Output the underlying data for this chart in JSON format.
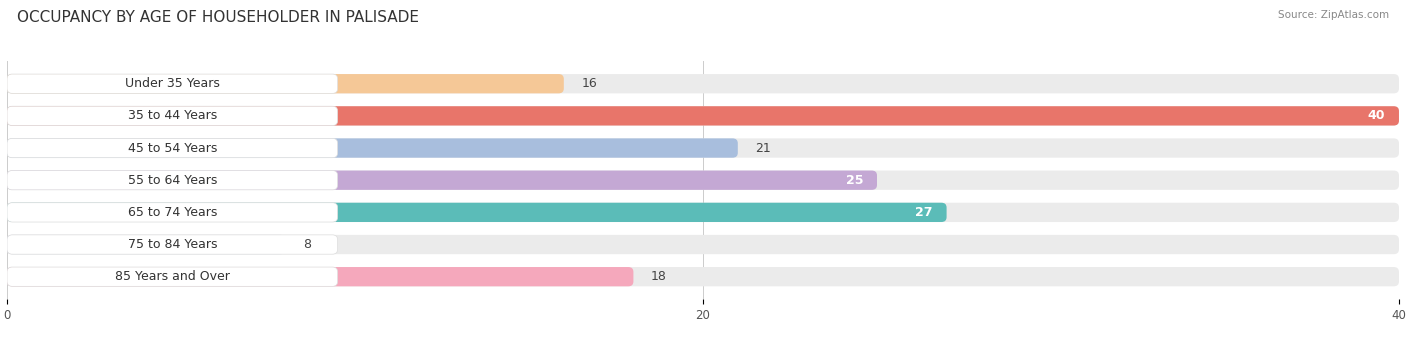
{
  "title": "OCCUPANCY BY AGE OF HOUSEHOLDER IN PALISADE",
  "source": "Source: ZipAtlas.com",
  "categories": [
    "Under 35 Years",
    "35 to 44 Years",
    "45 to 54 Years",
    "55 to 64 Years",
    "65 to 74 Years",
    "75 to 84 Years",
    "85 Years and Over"
  ],
  "values": [
    16,
    40,
    21,
    25,
    27,
    8,
    18
  ],
  "bar_colors": [
    "#f5c897",
    "#e8756a",
    "#a8bedd",
    "#c4a8d4",
    "#5bbcb8",
    "#c5c8e8",
    "#f5a8bc"
  ],
  "label_pill_color": "#ffffff",
  "bar_bg_color": "#ebebeb",
  "xlim_min": 0,
  "xlim_max": 40,
  "xticks": [
    0,
    20,
    40
  ],
  "title_fontsize": 11,
  "label_fontsize": 9,
  "value_fontsize": 9,
  "bar_height": 0.6,
  "background_color": "#ffffff",
  "value_inside": [
    40,
    25,
    27
  ],
  "grid_color": "#cccccc"
}
